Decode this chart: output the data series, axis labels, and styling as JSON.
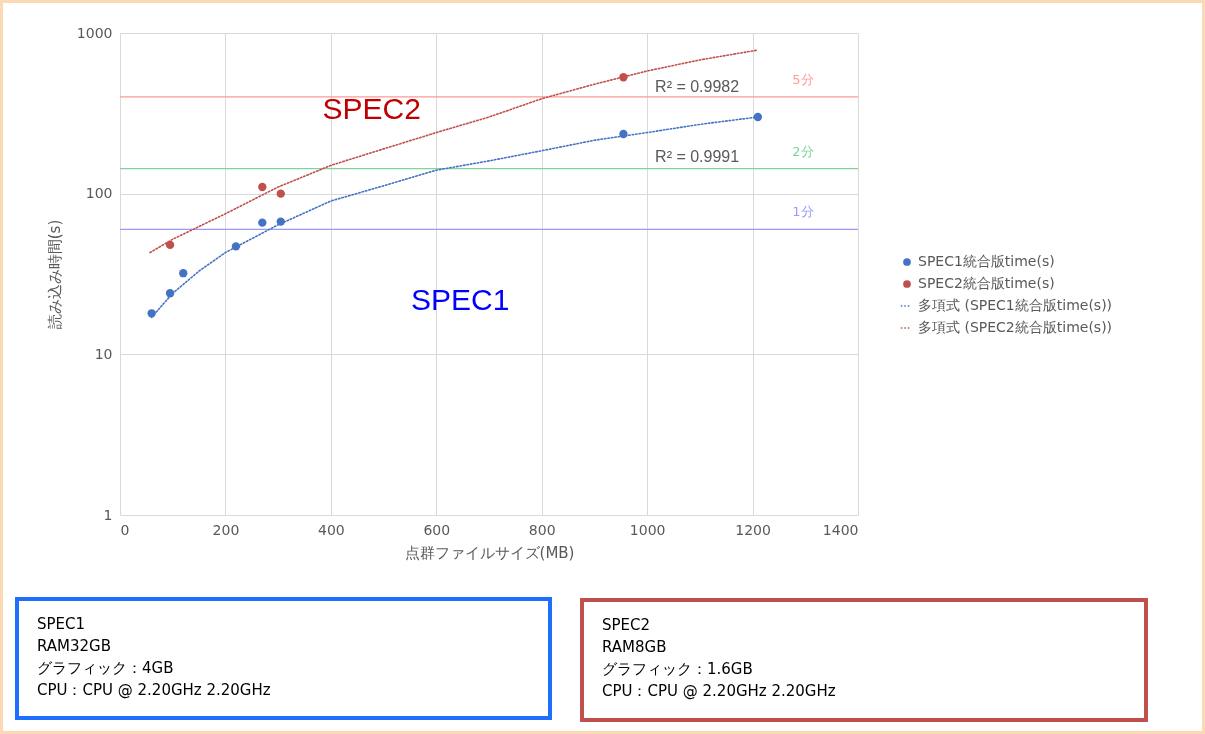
{
  "chart_data": {
    "type": "scatter",
    "xlabel": "点群ファイルサイズ(MB)",
    "ylabel": "読み込み時間(s)",
    "xlim": [
      0,
      1400
    ],
    "xticks": [
      0,
      200,
      400,
      600,
      800,
      1000,
      1200,
      1400
    ],
    "ylim": [
      1,
      1000
    ],
    "yticks": [
      1,
      10,
      100,
      1000
    ],
    "log": true,
    "grid": true,
    "legend": "right",
    "series": [
      {
        "name": "SPEC1統合版time(s)",
        "marker": "circle",
        "color": "#4472c4",
        "x": [
          60,
          95,
          120,
          220,
          270,
          305,
          955,
          1210
        ],
        "values": [
          18,
          24,
          32,
          47,
          66,
          67,
          235,
          300
        ]
      },
      {
        "name": "SPEC2統合版time(s)",
        "marker": "circle",
        "color": "#c0504d",
        "x": [
          95,
          270,
          305,
          955
        ],
        "values": [
          48,
          110,
          100,
          530
        ]
      },
      {
        "name": "多項式 (SPEC1統合版time(s))",
        "type": "line",
        "marker": "none",
        "line_style": "dotted",
        "color": "#4472c4",
        "x": [
          60,
          100,
          150,
          200,
          300,
          400,
          500,
          600,
          700,
          800,
          900,
          1000,
          1100,
          1210
        ],
        "values": [
          17,
          24,
          33,
          43,
          64,
          90,
          112,
          140,
          160,
          185,
          215,
          240,
          270,
          300
        ]
      },
      {
        "name": "多項式 (SPEC2統合版time(s))",
        "type": "line",
        "marker": "none",
        "line_style": "dotted",
        "color": "#c0504d",
        "x": [
          57,
          100,
          200,
          300,
          400,
          500,
          600,
          700,
          800,
          900,
          1000,
          1100,
          1210
        ],
        "values": [
          43,
          52,
          75,
          110,
          150,
          190,
          240,
          300,
          390,
          480,
          580,
          680,
          783
        ]
      }
    ],
    "ref_lines": [
      {
        "axis": "y",
        "value": 60,
        "label": "1分",
        "color": "#9999ff"
      },
      {
        "axis": "y",
        "value": 143,
        "label": "2分",
        "color": "#7fd39b"
      },
      {
        "axis": "y",
        "value": 400,
        "label": "5分",
        "color": "#ff9999"
      }
    ],
    "annotations": [
      "R² = 0.9982",
      "R² = 0.9991",
      "SPEC2",
      "SPEC1",
      "SPEC1\nRAM32GB\nグラフィック：4GB\nCPU：CPU @ 2.20GHz 2.20GHz",
      "SPEC2\nRAM8GB\nグラフィック：1.6GB\nCPU：CPU @ 2.20GHz 2.20GHz"
    ]
  }
}
